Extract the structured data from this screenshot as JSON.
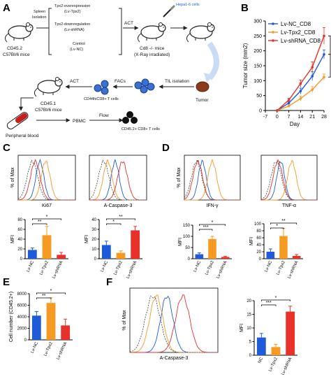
{
  "panels": {
    "a": "A",
    "b": "B",
    "c": "C",
    "d": "D",
    "e": "E",
    "f": "F"
  },
  "schematic": {
    "mouse1": [
      "CD45.2",
      "C57Bl/6 mice"
    ],
    "spleen": [
      "Spleen",
      "Isolation"
    ],
    "group1": [
      "Tpx2-overexpression",
      "(Lv-Tpx2)"
    ],
    "group2": [
      "Tpx2-downregulation",
      "(Lv-shRNA)"
    ],
    "group3": [
      "Control",
      "(Lv-NC)"
    ],
    "act": "ACT",
    "hepa": "Hepa1-6 cells",
    "cd8mice": [
      "Cd8 -/- mice",
      "(X-Ray irradiated)"
    ],
    "tumor": "Tumor",
    "til": "TIL isolation",
    "facs": "FACs",
    "cd44": "CD44hiCD8+ T cells",
    "act2": "ACT",
    "mouse2": [
      "CD45.1",
      "C57Bl/6 mice"
    ],
    "blood": "Peripheral blood",
    "pbmc": "PBMC",
    "flow": "Flow",
    "cd452": "CD45.2+ CD8+ T cells"
  },
  "chart_data": [
    {
      "panel": "B",
      "type": "line",
      "x": [
        0,
        7,
        14,
        21,
        28
      ],
      "xticks": [
        -7,
        0,
        7,
        14,
        21,
        28
      ],
      "xlabel": "Day",
      "ylabel": "Tumor size (mm2)",
      "ylim": [
        0,
        300
      ],
      "yticks": [
        0,
        50,
        100,
        150,
        200,
        250,
        300
      ],
      "legend_position": "top-left",
      "series": [
        {
          "name": "Lv-NC_CD8",
          "color": "#1f5bd8",
          "values": [
            0,
            25,
            65,
            115,
            188
          ],
          "err": [
            0,
            5,
            10,
            15,
            15
          ]
        },
        {
          "name": "Lv-Tpx2_CD8",
          "color": "#f59a23",
          "values": [
            0,
            15,
            40,
            70,
            112
          ],
          "err": [
            0,
            4,
            8,
            10,
            10
          ]
        },
        {
          "name": "Lv-shRNA_CD8",
          "color": "#e8312a",
          "values": [
            0,
            35,
            90,
            145,
            250
          ],
          "err": [
            0,
            6,
            12,
            18,
            28
          ]
        }
      ]
    },
    {
      "panel": "C",
      "type": "bar",
      "marker": "Ki67",
      "ylabel": "MFI",
      "ylim": [
        0,
        80
      ],
      "yticks": [
        0,
        20,
        40,
        60,
        80
      ],
      "categories": [
        "Lv-NC",
        "Lv-Tpx2",
        "Lv-shRNA"
      ],
      "values": [
        18,
        48,
        8
      ],
      "err": [
        4,
        18,
        5
      ],
      "colors": [
        "#1f5bd8",
        "#f59a23",
        "#e8312a"
      ],
      "sig": [
        {
          "from": 0,
          "to": 1,
          "label": "**"
        },
        {
          "from": 0,
          "to": 2,
          "label": "*"
        }
      ]
    },
    {
      "panel": "C",
      "type": "bar",
      "marker": "A-Caspase-3",
      "ylabel": "MFI",
      "ylim": [
        0,
        40
      ],
      "yticks": [
        0,
        10,
        20,
        30,
        40
      ],
      "categories": [
        "Lv-NC",
        "Lv-Tpx2",
        "Lv-shRNA"
      ],
      "values": [
        14,
        6,
        29
      ],
      "err": [
        4,
        2,
        4
      ],
      "colors": [
        "#1f5bd8",
        "#f59a23",
        "#e8312a"
      ],
      "sig": [
        {
          "from": 0,
          "to": 1,
          "label": "*"
        },
        {
          "from": 0,
          "to": 2,
          "label": "**"
        }
      ]
    },
    {
      "panel": "D",
      "type": "bar",
      "marker": "IFN-γ",
      "ylabel": "MFI",
      "ylim": [
        0,
        150
      ],
      "yticks": [
        0,
        50,
        100,
        150
      ],
      "categories": [
        "Lv-NC",
        "Lv-Tpx2",
        "Lv-shRNA"
      ],
      "values": [
        20,
        88,
        8
      ],
      "err": [
        6,
        12,
        3
      ],
      "colors": [
        "#1f5bd8",
        "#f59a23",
        "#e8312a"
      ],
      "sig": [
        {
          "from": 0,
          "to": 1,
          "label": "***"
        },
        {
          "from": 0,
          "to": 2,
          "label": "*"
        }
      ]
    },
    {
      "panel": "D",
      "type": "bar",
      "marker": "TNF-α",
      "ylabel": "MFI",
      "ylim": [
        0,
        100
      ],
      "yticks": [
        0,
        20,
        40,
        60,
        80,
        100
      ],
      "categories": [
        "Lv-NC",
        "Lv-Tpx2",
        "Lv-shRNA"
      ],
      "values": [
        20,
        65,
        8
      ],
      "err": [
        8,
        22,
        4
      ],
      "colors": [
        "#1f5bd8",
        "#f59a23",
        "#e8312a"
      ],
      "sig": [
        {
          "from": 0,
          "to": 1,
          "label": "*"
        },
        {
          "from": 0,
          "to": 2,
          "label": "**"
        }
      ]
    },
    {
      "panel": "E",
      "type": "bar",
      "ylabel": "Cell number (CD45.2+)",
      "ylim": [
        0,
        8000
      ],
      "yticks": [
        0,
        2000,
        4000,
        6000,
        8000
      ],
      "categories": [
        "Lv-NC",
        "Lv-Tpx2",
        "Lv-shRNA"
      ],
      "values": [
        4200,
        6400,
        2500
      ],
      "err": [
        700,
        900,
        1100
      ],
      "colors": [
        "#1f5bd8",
        "#f59a23",
        "#e8312a"
      ],
      "sig": [
        {
          "from": 0,
          "to": 1,
          "label": "**"
        },
        {
          "from": 0,
          "to": 2,
          "label": "*"
        }
      ]
    },
    {
      "panel": "F",
      "type": "bar",
      "ylabel": "MFI",
      "ylim": [
        0,
        20
      ],
      "yticks": [
        0,
        5,
        10,
        15,
        20
      ],
      "categories": [
        "NC",
        "Lv-Tpx2",
        "Lv-shRNA"
      ],
      "values": [
        6.5,
        3,
        16
      ],
      "err": [
        1.5,
        1,
        2
      ],
      "colors": [
        "#1f5bd8",
        "#f59a23",
        "#e8312a"
      ],
      "sig": [
        {
          "from": 0,
          "to": 1,
          "label": "***"
        },
        {
          "from": 0,
          "to": 2,
          "label": "*"
        }
      ]
    }
  ],
  "histograms": [
    {
      "panel": "C",
      "marker": "Ki67",
      "ylabel": "% of Max",
      "lines": [
        {
          "color": "#1f5bd8",
          "peak": 0.38
        },
        {
          "color": "#f59a23",
          "peak": 0.48
        },
        {
          "color": "#e8312a",
          "peak": 0.3
        },
        {
          "color": "#555555",
          "peak": 0.25
        }
      ]
    },
    {
      "panel": "C",
      "marker": "A-Caspase-3",
      "ylabel": "",
      "lines": [
        {
          "color": "#1f5bd8",
          "peak": 0.45
        },
        {
          "color": "#f59a23",
          "peak": 0.32
        },
        {
          "color": "#e8312a",
          "peak": 0.58
        },
        {
          "color": "#555555",
          "peak": 0.25
        }
      ]
    },
    {
      "panel": "D",
      "marker": "IFN-γ",
      "ylabel": "% of Max",
      "lines": [
        {
          "color": "#1f5bd8",
          "peak": 0.32
        },
        {
          "color": "#f59a23",
          "peak": 0.5
        },
        {
          "color": "#e8312a",
          "peak": 0.24
        },
        {
          "color": "#555555",
          "peak": 0.22
        }
      ]
    },
    {
      "panel": "D",
      "marker": "TNF-α",
      "ylabel": "",
      "lines": [
        {
          "color": "#1f5bd8",
          "peak": 0.35
        },
        {
          "color": "#f59a23",
          "peak": 0.55
        },
        {
          "color": "#e8312a",
          "peak": 0.3
        },
        {
          "color": "#555555",
          "peak": 0.27
        }
      ]
    },
    {
      "panel": "F",
      "marker": "A-Caspase-3",
      "ylabel": "% of Max",
      "lines": [
        {
          "color": "#1f5bd8",
          "peak": 0.42
        },
        {
          "color": "#f59a23",
          "peak": 0.3
        },
        {
          "color": "#e8312a",
          "peak": 0.6
        },
        {
          "color": "#555555",
          "peak": 0.26
        }
      ]
    }
  ]
}
